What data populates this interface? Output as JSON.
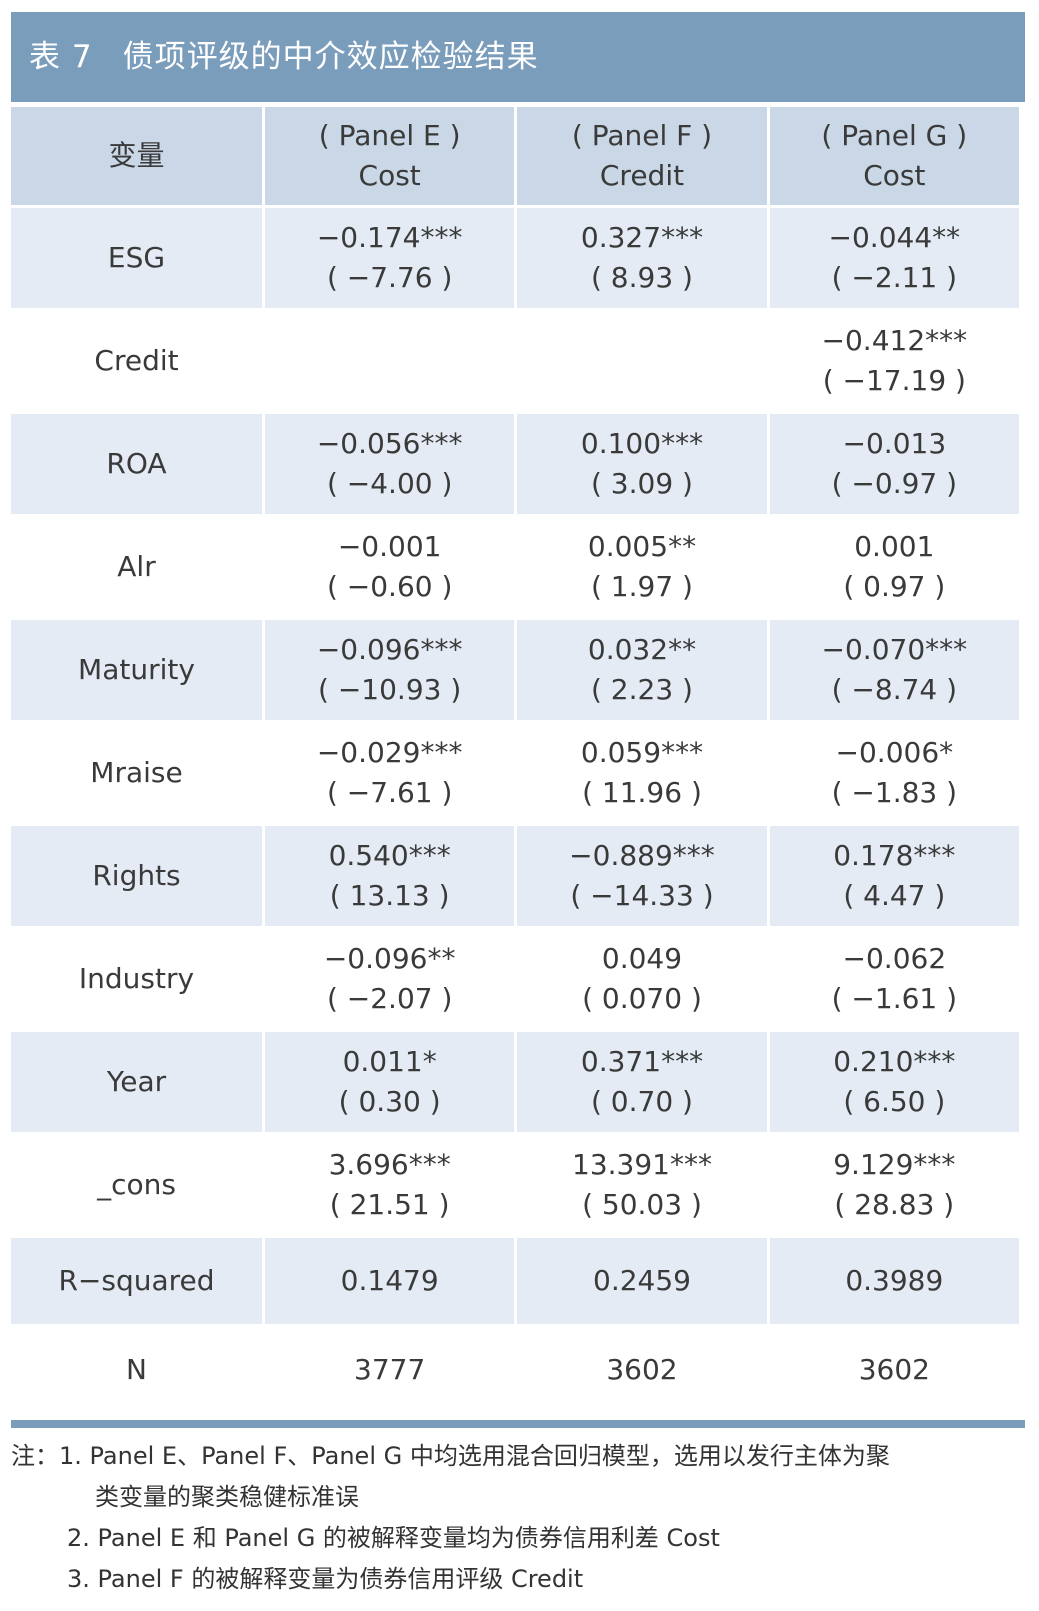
{
  "title": {
    "number": "表 7",
    "text": "债项评级的中介效应检验结果"
  },
  "table": {
    "headers": [
      {
        "line1": "变量",
        "line2": ""
      },
      {
        "line1": "( Panel E )",
        "line2": "Cost"
      },
      {
        "line1": "( Panel F )",
        "line2": "Credit"
      },
      {
        "line1": "( Panel G )",
        "line2": "Cost"
      }
    ],
    "rows": [
      {
        "var": "ESG",
        "cells": [
          [
            "−0.174***",
            "( −7.76 )"
          ],
          [
            "0.327***",
            "( 8.93 )"
          ],
          [
            "−0.044**",
            "( −2.11 )"
          ]
        ]
      },
      {
        "var": "Credit",
        "cells": [
          [
            "",
            ""
          ],
          [
            "",
            ""
          ],
          [
            "−0.412***",
            "( −17.19 )"
          ]
        ]
      },
      {
        "var": "ROA",
        "cells": [
          [
            "−0.056***",
            "( −4.00 )"
          ],
          [
            "0.100***",
            "( 3.09 )"
          ],
          [
            "−0.013",
            "( −0.97 )"
          ]
        ]
      },
      {
        "var": "Alr",
        "cells": [
          [
            "−0.001",
            "( −0.60 )"
          ],
          [
            "0.005**",
            "( 1.97 )"
          ],
          [
            "0.001",
            "( 0.97 )"
          ]
        ]
      },
      {
        "var": "Maturity",
        "cells": [
          [
            "−0.096***",
            "( −10.93 )"
          ],
          [
            "0.032**",
            "( 2.23 )"
          ],
          [
            "−0.070***",
            "( −8.74 )"
          ]
        ]
      },
      {
        "var": "Mraise",
        "cells": [
          [
            "−0.029***",
            "( −7.61 )"
          ],
          [
            "0.059***",
            "( 11.96 )"
          ],
          [
            "−0.006*",
            "( −1.83 )"
          ]
        ]
      },
      {
        "var": "Rights",
        "cells": [
          [
            "0.540***",
            "( 13.13 )"
          ],
          [
            "−0.889***",
            "( −14.33 )"
          ],
          [
            "0.178***",
            "( 4.47 )"
          ]
        ]
      },
      {
        "var": "Industry",
        "cells": [
          [
            "−0.096**",
            "( −2.07 )"
          ],
          [
            "0.049",
            "( 0.070 )"
          ],
          [
            "−0.062",
            "( −1.61 )"
          ]
        ]
      },
      {
        "var": "Year",
        "cells": [
          [
            "0.011*",
            "( 0.30 )"
          ],
          [
            "0.371***",
            "( 0.70 )"
          ],
          [
            "0.210***",
            "( 6.50 )"
          ]
        ]
      },
      {
        "var": "_cons",
        "cells": [
          [
            "3.696***",
            "( 21.51 )"
          ],
          [
            "13.391***",
            "( 50.03 )"
          ],
          [
            "9.129***",
            "( 28.83 )"
          ]
        ]
      }
    ],
    "r_squared": {
      "label": "R−squared",
      "values": [
        "0.1479",
        "0.2459",
        "0.3989"
      ]
    },
    "n": {
      "label": "N",
      "values": [
        "3777",
        "3602",
        "3602"
      ]
    }
  },
  "notes": {
    "line1": "注：1. Panel E、Panel F、Panel G 中均选用混合回归模型，选用以发行主体为聚",
    "line2": "类变量的聚类稳健标准误",
    "line3": "2. Panel E 和 Panel G 的被解释变量均为债券信用利差 Cost",
    "line4": "3. Panel F 的被解释变量为债券信用评级 Credit"
  },
  "colors": {
    "title_bg": "#7b9dbc",
    "header_bg": "#c9d7e6",
    "shade_bg": "#e4ebf4"
  }
}
